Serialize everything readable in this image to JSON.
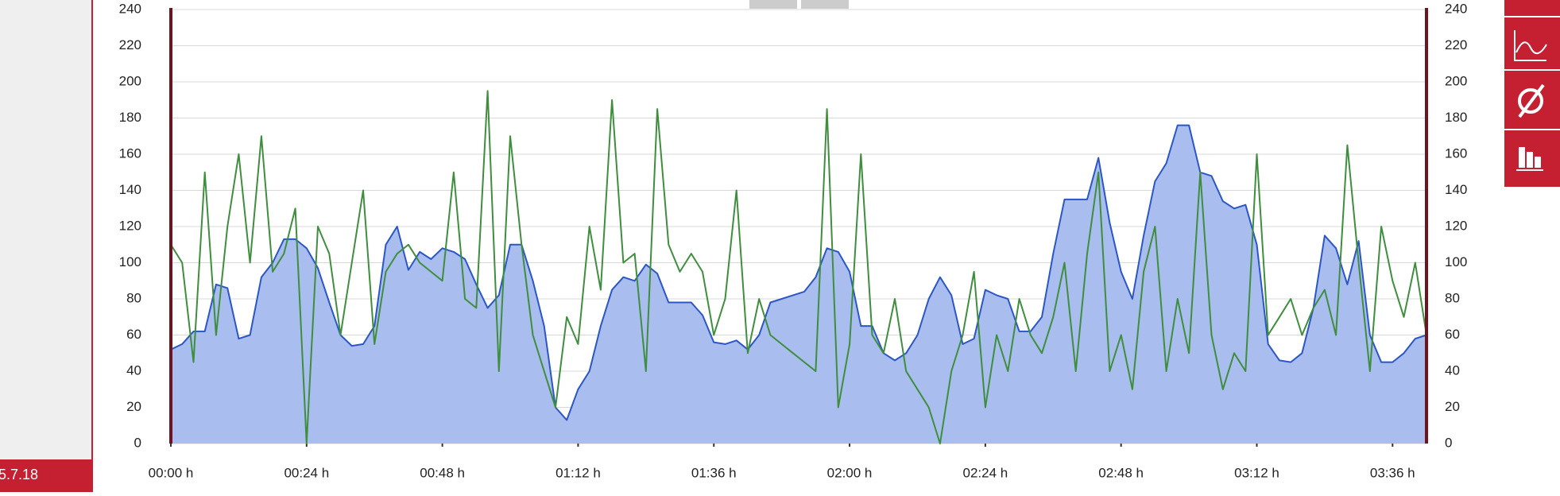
{
  "sidebar": {
    "date": "5.7.18"
  },
  "chart_data": {
    "type": "line",
    "x": [
      0,
      2,
      4,
      6,
      8,
      10,
      12,
      14,
      16,
      18,
      20,
      22,
      24,
      26,
      28,
      30,
      32,
      34,
      36,
      38,
      40,
      42,
      44,
      46,
      48,
      50,
      52,
      54,
      56,
      58,
      60,
      62,
      64,
      66,
      68,
      70,
      72,
      74,
      76,
      78,
      80,
      82,
      84,
      86,
      88,
      90,
      92,
      94,
      96,
      98,
      100,
      102,
      104,
      106,
      108,
      110,
      112,
      114,
      116,
      118,
      120,
      122,
      124,
      126,
      128,
      130,
      132,
      134,
      136,
      138,
      140,
      142,
      144,
      146,
      148,
      150,
      152,
      154,
      156,
      158,
      160,
      162,
      164,
      166,
      168,
      170,
      172,
      174,
      176,
      178,
      180,
      182,
      184,
      186,
      188,
      190,
      192,
      194,
      196,
      198,
      200,
      202,
      204,
      206,
      208,
      210,
      212,
      214,
      216,
      218,
      220,
      222
    ],
    "series": [
      {
        "color": "#2a56c6",
        "fill_color": "#aabdef",
        "values": [
          52,
          55,
          62,
          62,
          88,
          86,
          58,
          60,
          92,
          100,
          113,
          113,
          108,
          97,
          78,
          60,
          54,
          55,
          65,
          110,
          120,
          96,
          106,
          102,
          108,
          106,
          102,
          88,
          75,
          82,
          110,
          110,
          90,
          65,
          20,
          13,
          30,
          40,
          65,
          85,
          92,
          90,
          99,
          94,
          78,
          78,
          78,
          71,
          56,
          55,
          57,
          52,
          60,
          78,
          80,
          82,
          84,
          92,
          108,
          106,
          95,
          65,
          65,
          50,
          46,
          50,
          60,
          80,
          92,
          82,
          55,
          58,
          85,
          82,
          80,
          62,
          62,
          70,
          105,
          135,
          135,
          135,
          158,
          122,
          95,
          80,
          115,
          145,
          155,
          176,
          176,
          150,
          148,
          134,
          130,
          132,
          110,
          55,
          46,
          45,
          50,
          75,
          115,
          108,
          88,
          112,
          60,
          45,
          45,
          50,
          58,
          60
        ]
      },
      {
        "color": "#3e8e3e",
        "values": [
          110,
          100,
          45,
          150,
          60,
          120,
          160,
          100,
          170,
          95,
          105,
          130,
          0,
          120,
          105,
          60,
          100,
          140,
          55,
          95,
          105,
          110,
          100,
          95,
          90,
          150,
          80,
          75,
          195,
          40,
          170,
          110,
          60,
          40,
          20,
          70,
          55,
          120,
          85,
          190,
          100,
          105,
          40,
          185,
          110,
          95,
          105,
          95,
          60,
          80,
          140,
          50,
          80,
          60,
          55,
          50,
          45,
          40,
          185,
          20,
          55,
          160,
          60,
          50,
          80,
          40,
          30,
          20,
          0,
          40,
          60,
          95,
          20,
          60,
          40,
          80,
          60,
          50,
          70,
          100,
          40,
          105,
          150,
          40,
          60,
          30,
          95,
          120,
          40,
          80,
          50,
          150,
          60,
          30,
          50,
          40,
          160,
          60,
          70,
          80,
          60,
          75,
          85,
          60,
          165,
          100,
          40,
          120,
          90,
          70,
          100,
          60
        ]
      }
    ],
    "xlim": [
      0,
      222
    ],
    "xticks": [
      {
        "value": 0,
        "label": "00:00 h"
      },
      {
        "value": 24,
        "label": "00:24 h"
      },
      {
        "value": 48,
        "label": "00:48 h"
      },
      {
        "value": 72,
        "label": "01:12 h"
      },
      {
        "value": 96,
        "label": "01:36 h"
      },
      {
        "value": 120,
        "label": "02:00 h"
      },
      {
        "value": 144,
        "label": "02:24 h"
      },
      {
        "value": 168,
        "label": "02:48 h"
      },
      {
        "value": 192,
        "label": "03:12 h"
      },
      {
        "value": 216,
        "label": "03:36 h"
      }
    ],
    "ylim": [
      0,
      240
    ],
    "yticks": [
      0,
      20,
      40,
      60,
      80,
      100,
      120,
      140,
      160,
      180,
      200,
      220,
      240
    ],
    "y2lim": [
      0,
      240
    ],
    "y2ticks": [
      0,
      20,
      40,
      60,
      80,
      100,
      120,
      140,
      160,
      180,
      200,
      220,
      240
    ],
    "grid": true
  }
}
